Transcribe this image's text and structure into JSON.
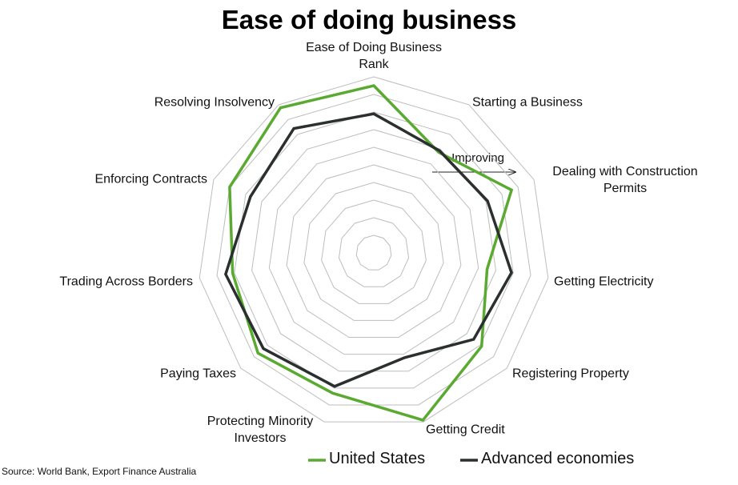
{
  "chart_data": {
    "type": "radar",
    "title": "Ease of doing business",
    "categories": [
      "Ease of Doing Business Rank",
      "Starting a Business",
      "Dealing with Construction Permits",
      "Getting Electricity",
      "Registering Property",
      "Getting Credit",
      "Protecting Minority Investors",
      "Paying Taxes",
      "Trading Across Borders",
      "Enforcing Contracts",
      "Resolving Insolvency"
    ],
    "series": [
      {
        "name": "United States",
        "color": "#5aaa32",
        "values": [
          9.5,
          6.8,
          8.6,
          6.5,
          8.1,
          9.9,
          8.3,
          8.7,
          8.1,
          9.0,
          9.8
        ]
      },
      {
        "name": "Advanced economies",
        "color": "#2b2f2f",
        "values": [
          7.9,
          6.9,
          7.1,
          7.9,
          7.5,
          6.2,
          7.9,
          8.3,
          8.5,
          7.7,
          8.4
        ]
      }
    ],
    "rlim": [
      0,
      10
    ],
    "rticks": [
      1,
      2,
      3,
      4,
      5,
      6,
      7,
      8,
      9,
      10
    ],
    "annotation": "Improving",
    "source": "Source: World Bank, Export Finance Australia"
  }
}
